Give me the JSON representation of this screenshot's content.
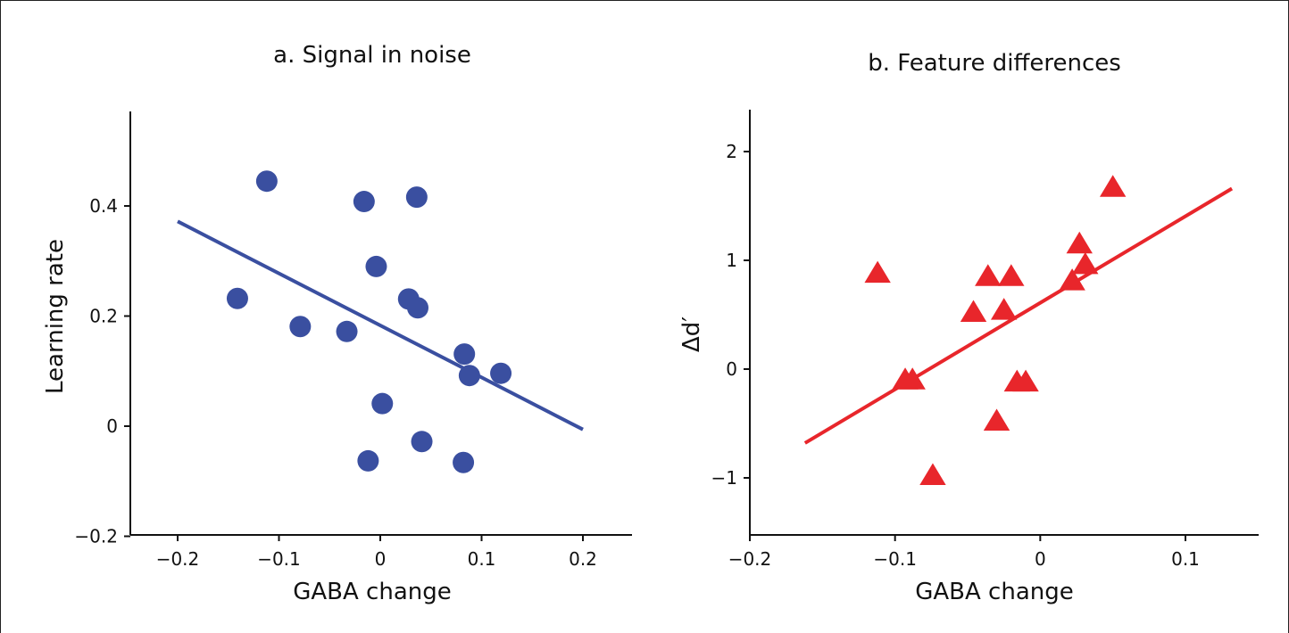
{
  "chart_data": [
    {
      "type": "scatter",
      "title": "a. Signal in noise",
      "xlabel": "GABA change",
      "ylabel": "Learning rate",
      "xlim": [
        -0.25,
        0.25
      ],
      "ylim": [
        -0.2,
        0.57
      ],
      "xticks": [
        -0.2,
        -0.1,
        0,
        0.1,
        0.2
      ],
      "xtick_labels": [
        "−0.2",
        "−0.1",
        "0",
        "0.1",
        "0.2"
      ],
      "yticks": [
        -0.2,
        0,
        0.2,
        0.4
      ],
      "ytick_labels": [
        "−0.2",
        "0",
        "0.2",
        "0.4"
      ],
      "marker": "circle",
      "color": "#3a4fa0",
      "points": [
        {
          "x": -0.112,
          "y": 0.445
        },
        {
          "x": -0.141,
          "y": 0.232
        },
        {
          "x": -0.079,
          "y": 0.181
        },
        {
          "x": -0.033,
          "y": 0.172
        },
        {
          "x": -0.016,
          "y": 0.408
        },
        {
          "x": -0.004,
          "y": 0.29
        },
        {
          "x": 0.036,
          "y": 0.416
        },
        {
          "x": 0.028,
          "y": 0.231
        },
        {
          "x": 0.037,
          "y": 0.215
        },
        {
          "x": 0.083,
          "y": 0.131
        },
        {
          "x": 0.088,
          "y": 0.092
        },
        {
          "x": 0.119,
          "y": 0.096
        },
        {
          "x": 0.002,
          "y": 0.041
        },
        {
          "x": 0.041,
          "y": -0.028
        },
        {
          "x": -0.012,
          "y": -0.063
        },
        {
          "x": 0.082,
          "y": -0.066
        }
      ],
      "fit_line": {
        "x": [
          -0.2,
          0.2
        ],
        "y": [
          0.372,
          -0.006
        ]
      },
      "grid": false
    },
    {
      "type": "scatter",
      "title": "b. Feature differences",
      "xlabel": "GABA change",
      "ylabel": "Δd′",
      "xlim": [
        -0.2,
        0.15
      ],
      "ylim": [
        -1.5,
        2.4
      ],
      "xticks": [
        -0.2,
        -0.1,
        0,
        0.1
      ],
      "xtick_labels": [
        "−0.2",
        "−0.1",
        "0",
        "0.1"
      ],
      "yticks": [
        -1,
        0,
        1,
        2
      ],
      "ytick_labels": [
        "−1",
        "0",
        "1",
        "2"
      ],
      "marker": "triangle",
      "color": "#e8262b",
      "points": [
        {
          "x": -0.112,
          "y": 0.88
        },
        {
          "x": -0.093,
          "y": -0.1
        },
        {
          "x": -0.088,
          "y": -0.1
        },
        {
          "x": -0.074,
          "y": -0.98
        },
        {
          "x": -0.046,
          "y": 0.52
        },
        {
          "x": -0.036,
          "y": 0.85
        },
        {
          "x": -0.03,
          "y": -0.48
        },
        {
          "x": -0.025,
          "y": 0.54
        },
        {
          "x": -0.02,
          "y": 0.85
        },
        {
          "x": -0.016,
          "y": -0.12
        },
        {
          "x": -0.01,
          "y": -0.12
        },
        {
          "x": 0.022,
          "y": 0.81
        },
        {
          "x": 0.027,
          "y": 1.15
        },
        {
          "x": 0.031,
          "y": 0.96
        },
        {
          "x": 0.05,
          "y": 1.67
        }
      ],
      "fit_line": {
        "x": [
          -0.162,
          0.132
        ],
        "y": [
          -0.68,
          1.66
        ]
      },
      "grid": false
    }
  ]
}
